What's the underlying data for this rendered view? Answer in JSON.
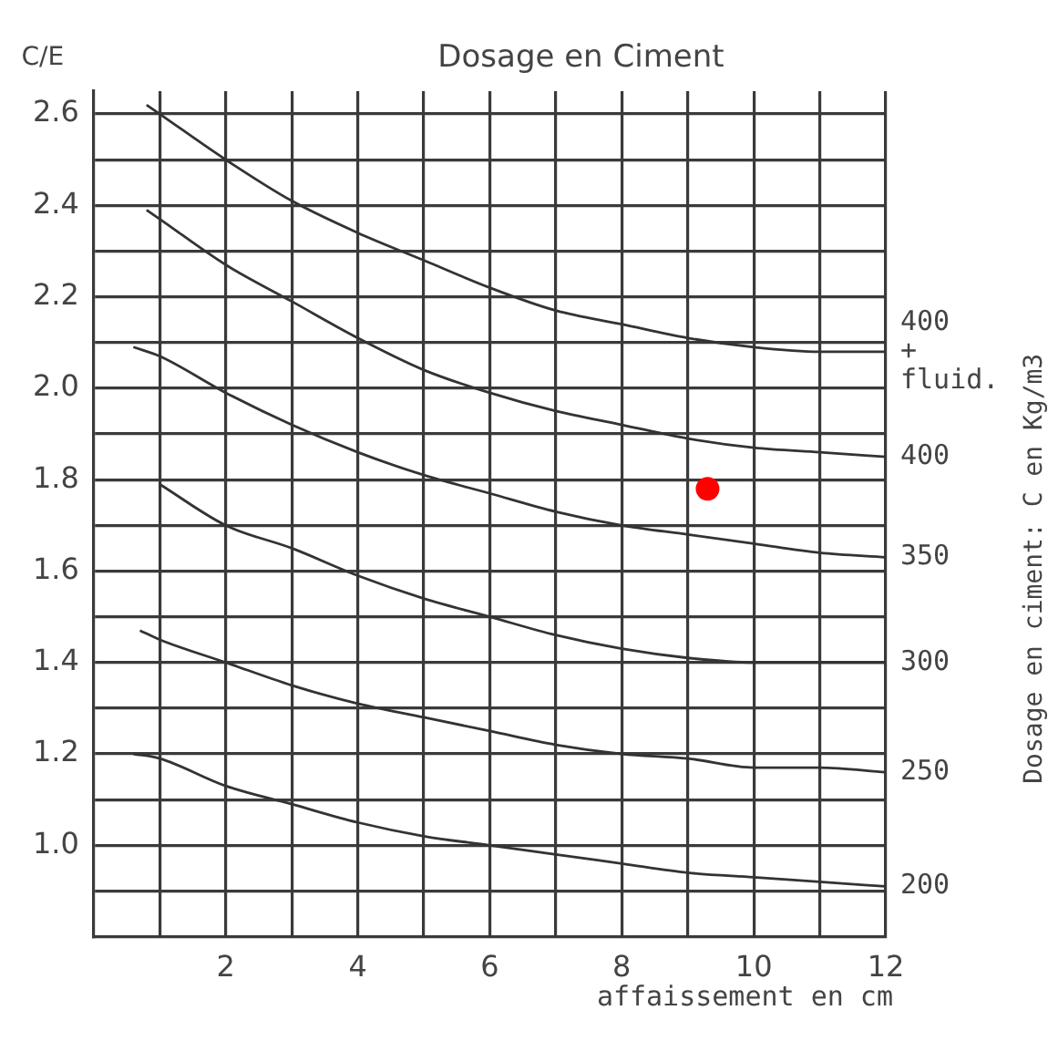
{
  "chart_data": {
    "type": "line",
    "title": "Dosage en Ciment",
    "xlabel": "affaissement en cm",
    "ylabel": "C/E",
    "y2label": "Dosage en ciment: C en Kg/m3",
    "x": [
      0.8,
      1,
      2,
      3,
      4,
      5,
      6,
      7,
      8,
      9,
      10,
      11,
      12
    ],
    "series": [
      {
        "name": "400 + fluid.",
        "color": "#333333",
        "values": [
          2.62,
          2.6,
          2.5,
          2.41,
          2.34,
          2.28,
          2.22,
          2.17,
          2.14,
          2.11,
          2.09,
          2.08,
          2.08
        ]
      },
      {
        "name": "400",
        "color": "#333333",
        "values": [
          2.39,
          2.37,
          2.27,
          2.19,
          2.11,
          2.04,
          1.99,
          1.95,
          1.92,
          1.89,
          1.87,
          1.86,
          1.85
        ]
      },
      {
        "name": "350",
        "color": "#333333",
        "x": [
          0.6,
          1,
          2,
          3,
          4,
          5,
          6,
          7,
          8,
          9,
          10,
          11,
          12
        ],
        "values": [
          2.09,
          2.07,
          1.99,
          1.92,
          1.86,
          1.81,
          1.77,
          1.73,
          1.7,
          1.68,
          1.66,
          1.64,
          1.63
        ]
      },
      {
        "name": "300",
        "color": "#333333",
        "x": [
          1,
          2,
          3,
          4,
          5,
          6,
          7,
          8,
          9,
          10,
          11,
          12
        ],
        "values": [
          1.79,
          1.7,
          1.65,
          1.59,
          1.54,
          1.5,
          1.46,
          1.43,
          1.41,
          1.4,
          1.4,
          1.4
        ]
      },
      {
        "name": "250",
        "color": "#333333",
        "x": [
          0.7,
          1,
          2,
          3,
          4,
          5,
          6,
          7,
          8,
          9,
          10,
          11,
          12
        ],
        "values": [
          1.47,
          1.45,
          1.4,
          1.35,
          1.31,
          1.28,
          1.25,
          1.22,
          1.2,
          1.19,
          1.17,
          1.17,
          1.16
        ]
      },
      {
        "name": "200",
        "color": "#333333",
        "x": [
          0.6,
          1,
          2,
          3,
          4,
          5,
          6,
          7,
          8,
          9,
          10,
          11,
          12
        ],
        "values": [
          1.2,
          1.19,
          1.13,
          1.09,
          1.05,
          1.02,
          1.0,
          0.98,
          0.96,
          0.94,
          0.93,
          0.92,
          0.91
        ]
      },
      {
        "type": "scatter",
        "color": "#ff0000",
        "x": [
          9.3
        ],
        "values": [
          1.78
        ]
      }
    ],
    "xlim": [
      0,
      12
    ],
    "ylim": [
      0.8,
      2.65
    ],
    "xticks": [
      {
        "value": 1,
        "label": null
      },
      2,
      {
        "value": 3,
        "label": null
      },
      4,
      {
        "value": 5,
        "label": null
      },
      6,
      {
        "value": 7,
        "label": null
      },
      8,
      {
        "value": 9,
        "label": null
      },
      10,
      {
        "value": 11,
        "label": null
      },
      12
    ],
    "yticks": [
      {
        "value": 0.9,
        "label": null
      },
      {
        "value": 1,
        "label": "1.0"
      },
      {
        "value": 1.1,
        "label": null
      },
      1.2,
      {
        "value": 1.3,
        "label": null
      },
      1.4,
      {
        "value": 1.5,
        "label": null
      },
      1.6,
      {
        "value": 1.7,
        "label": null
      },
      1.8,
      {
        "value": 1.9,
        "label": null
      },
      {
        "value": 2,
        "label": "2.0"
      },
      {
        "value": 2.1,
        "label": null
      },
      2.2,
      {
        "value": 2.3,
        "label": null
      },
      2.4,
      {
        "value": 2.5,
        "label": null
      },
      2.6
    ],
    "grid": true,
    "legend": false,
    "line_style": "solid"
  }
}
